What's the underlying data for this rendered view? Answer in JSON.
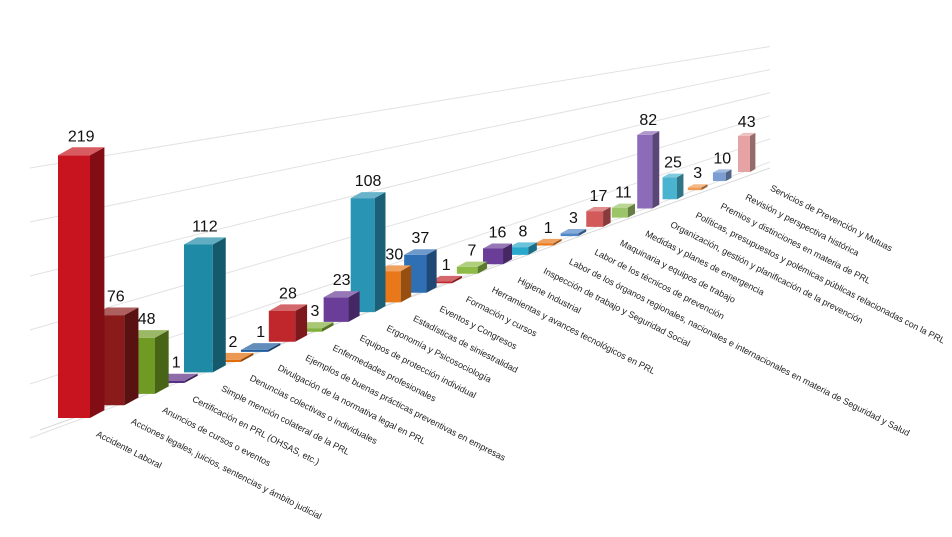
{
  "chart_data": {
    "type": "bar",
    "title": "",
    "xlabel": "",
    "ylabel": "",
    "ylim": [
      0,
      250
    ],
    "grid": true,
    "legend": "none",
    "categories": [
      "Accidente Laboral",
      "Acciones legales, juicios, sentencias y ámbito judicial",
      "Anuncios de cursos o eventos",
      "Certificación en PRL (OHSAS, etc.)",
      "Denuncias colectivas o individuales",
      "Divulgación de la normativa legal en PRL",
      "Ejemplos de buenas prácticas preventivas en empresas",
      "Enfermedades profesionales",
      "Equipos de protección individual",
      "Ergonomía y Psicosociología",
      "Estadísticas de siniestralidad",
      "Eventos y Congresos",
      "Formación y cursos",
      "Herramientas y avances tecnológicos en PRL",
      "Higiene Industrial",
      "Inspección de trabajo y Seguridad Social",
      "Labor de los órganos regionales, nacionales e internacionales en materia de Seguridad y Salud",
      "Labor de los técnicos de prevención",
      "Maquinaria y equipos de trabajo",
      "Medidas y planes de emergencia",
      "Organización, gestión y planificación de la prevención",
      "Políticas, presupuestos y polémicas públicas relacionadas con la PRL",
      "Premios y distinciones en materia de PRL",
      "Revisión y perspectiva histórica",
      "Servicios de Prevención y Mutuas",
      "Simple mención colateral de la PRL"
    ],
    "values": [
      219,
      76,
      48,
      1,
      2,
      1,
      28,
      3,
      23,
      108,
      30,
      37,
      1,
      7,
      16,
      8,
      1,
      3,
      17,
      11,
      82,
      25,
      3,
      10,
      43,
      112
    ],
    "value_labels": [
      "219",
      "76",
      "48",
      "1",
      "2",
      "1",
      "28",
      "3",
      "23",
      "108",
      "30",
      "37",
      "1",
      "7",
      "16",
      "8",
      "1",
      "3",
      "17",
      "11",
      "82",
      "25",
      "3",
      "10",
      "43",
      "112"
    ],
    "colors": [
      "#c8141f",
      "#8b1a1a",
      "#6f9a23",
      "#5a2f86",
      "#e36c09",
      "#1f5c9e",
      "#c0272d",
      "#82b03a",
      "#6a3e98",
      "#2a94b5",
      "#e8781a",
      "#2f6fb3",
      "#c0272d",
      "#8dbb45",
      "#6a3e98",
      "#2aa8cc",
      "#e8781a",
      "#4f86c6",
      "#d25a5a",
      "#9cc468",
      "#8c6bb8",
      "#4ab3cf",
      "#f09a55",
      "#7c9dd2",
      "#e5a3a3",
      "#1f8aa6"
    ]
  }
}
